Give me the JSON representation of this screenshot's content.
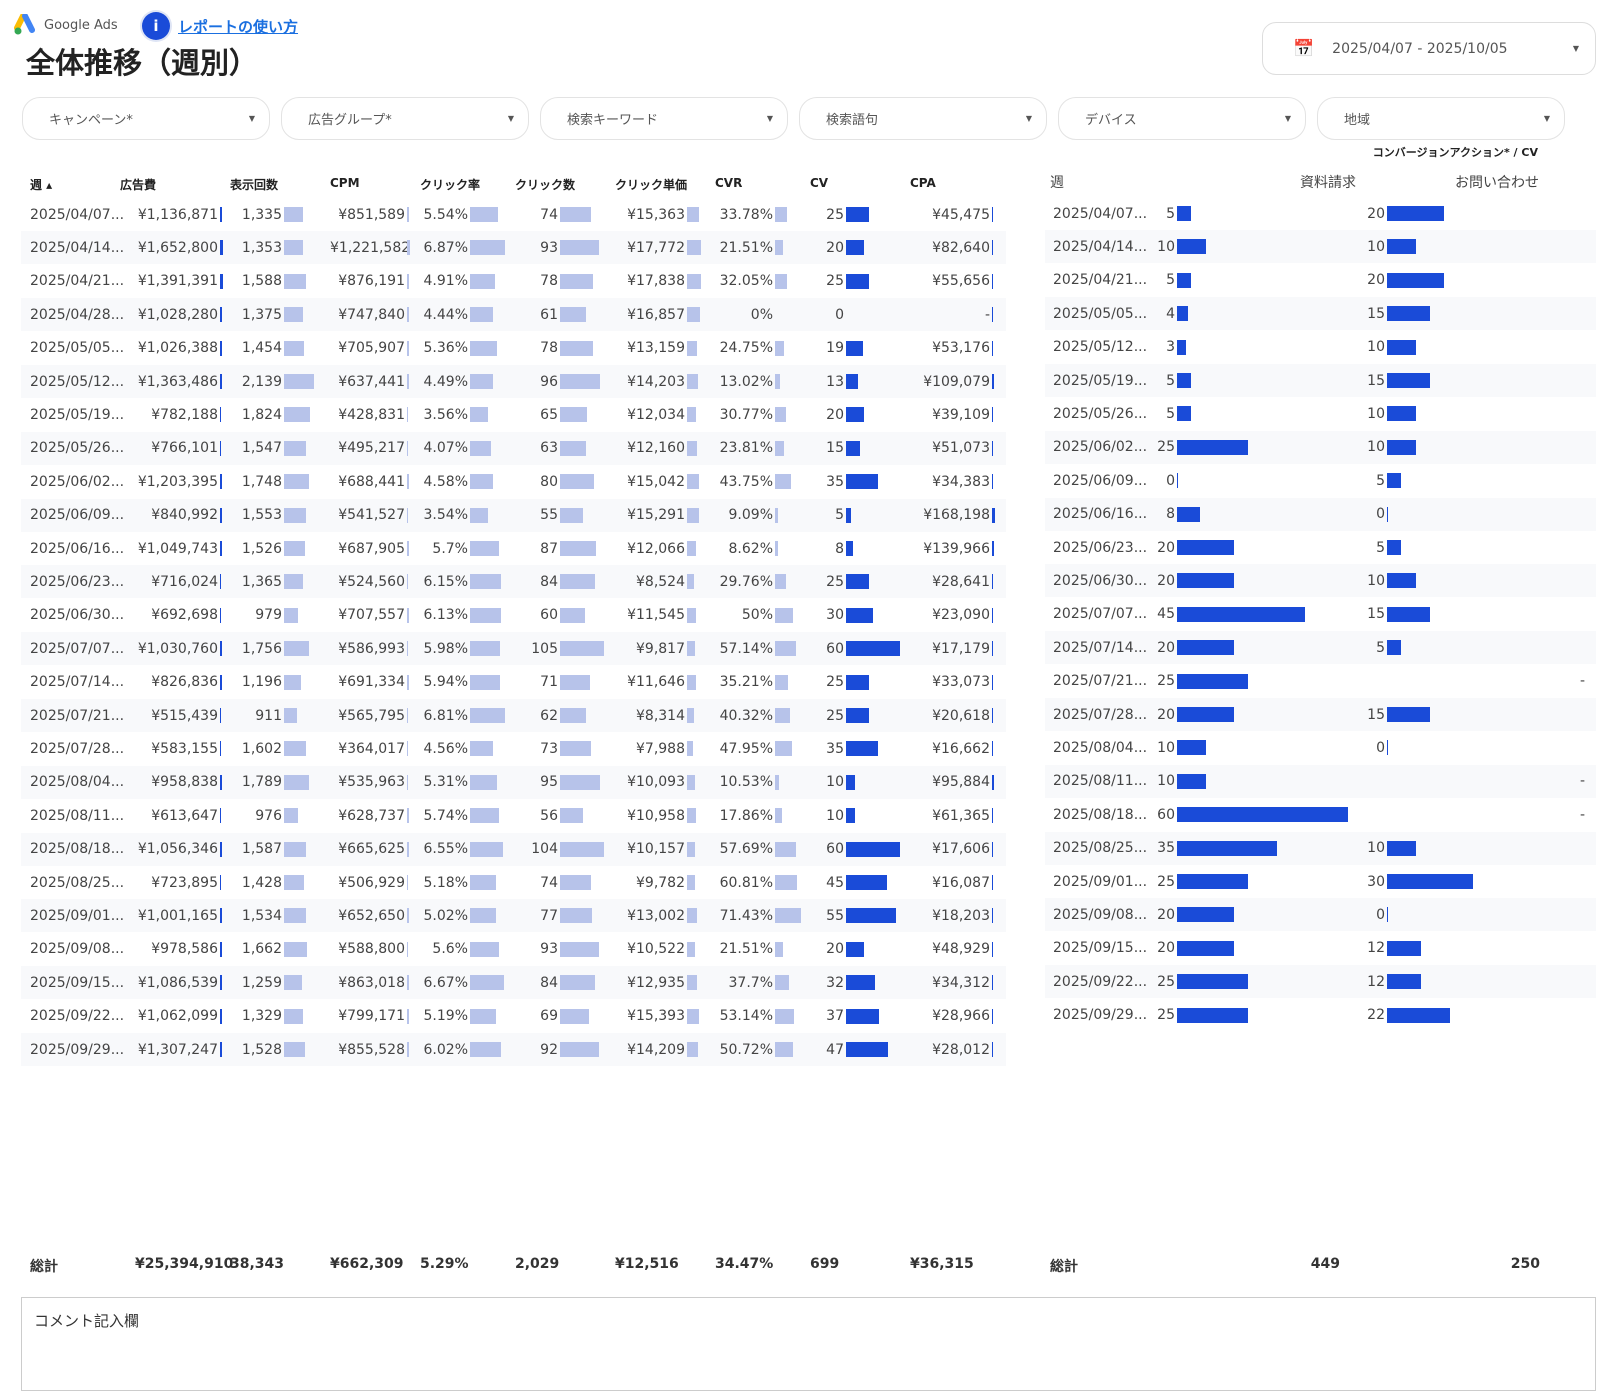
{
  "header": {
    "logo_text": "Google Ads",
    "help_link": "レポートの使い方",
    "title": "全体推移（週別）",
    "date_range": "2025/04/07 - 2025/10/05"
  },
  "filters": [
    "キャンペーン*",
    "広告グループ*",
    "検索キーワード",
    "検索語句",
    "デバイス",
    "地域"
  ],
  "colors": {
    "light_bar": "#b7c3ea",
    "dark_bar": "#1a4bd8"
  },
  "main_table": {
    "headers": [
      "週 ▴",
      "広告費",
      "表示回数",
      "CPM",
      "クリック率",
      "クリック数",
      "クリック単価",
      "CVR",
      "CV",
      "CPA"
    ],
    "rows": [
      [
        "2025/04/07...",
        "¥1,136,871",
        "1,335",
        "¥851,589",
        "5.54%",
        "74",
        "¥15,363",
        "33.78%",
        "25",
        "¥45,475"
      ],
      [
        "2025/04/14...",
        "¥1,652,800",
        "1,353",
        "¥1,221,582",
        "6.87%",
        "93",
        "¥17,772",
        "21.51%",
        "20",
        "¥82,640"
      ],
      [
        "2025/04/21...",
        "¥1,391,391",
        "1,588",
        "¥876,191",
        "4.91%",
        "78",
        "¥17,838",
        "32.05%",
        "25",
        "¥55,656"
      ],
      [
        "2025/04/28...",
        "¥1,028,280",
        "1,375",
        "¥747,840",
        "4.44%",
        "61",
        "¥16,857",
        "0%",
        "0",
        "-"
      ],
      [
        "2025/05/05...",
        "¥1,026,388",
        "1,454",
        "¥705,907",
        "5.36%",
        "78",
        "¥13,159",
        "24.75%",
        "19",
        "¥53,176"
      ],
      [
        "2025/05/12...",
        "¥1,363,486",
        "2,139",
        "¥637,441",
        "4.49%",
        "96",
        "¥14,203",
        "13.02%",
        "13",
        "¥109,079"
      ],
      [
        "2025/05/19...",
        "¥782,188",
        "1,824",
        "¥428,831",
        "3.56%",
        "65",
        "¥12,034",
        "30.77%",
        "20",
        "¥39,109"
      ],
      [
        "2025/05/26...",
        "¥766,101",
        "1,547",
        "¥495,217",
        "4.07%",
        "63",
        "¥12,160",
        "23.81%",
        "15",
        "¥51,073"
      ],
      [
        "2025/06/02...",
        "¥1,203,395",
        "1,748",
        "¥688,441",
        "4.58%",
        "80",
        "¥15,042",
        "43.75%",
        "35",
        "¥34,383"
      ],
      [
        "2025/06/09...",
        "¥840,992",
        "1,553",
        "¥541,527",
        "3.54%",
        "55",
        "¥15,291",
        "9.09%",
        "5",
        "¥168,198"
      ],
      [
        "2025/06/16...",
        "¥1,049,743",
        "1,526",
        "¥687,905",
        "5.7%",
        "87",
        "¥12,066",
        "8.62%",
        "8",
        "¥139,966"
      ],
      [
        "2025/06/23...",
        "¥716,024",
        "1,365",
        "¥524,560",
        "6.15%",
        "84",
        "¥8,524",
        "29.76%",
        "25",
        "¥28,641"
      ],
      [
        "2025/06/30...",
        "¥692,698",
        "979",
        "¥707,557",
        "6.13%",
        "60",
        "¥11,545",
        "50%",
        "30",
        "¥23,090"
      ],
      [
        "2025/07/07...",
        "¥1,030,760",
        "1,756",
        "¥586,993",
        "5.98%",
        "105",
        "¥9,817",
        "57.14%",
        "60",
        "¥17,179"
      ],
      [
        "2025/07/14...",
        "¥826,836",
        "1,196",
        "¥691,334",
        "5.94%",
        "71",
        "¥11,646",
        "35.21%",
        "25",
        "¥33,073"
      ],
      [
        "2025/07/21...",
        "¥515,439",
        "911",
        "¥565,795",
        "6.81%",
        "62",
        "¥8,314",
        "40.32%",
        "25",
        "¥20,618"
      ],
      [
        "2025/07/28...",
        "¥583,155",
        "1,602",
        "¥364,017",
        "4.56%",
        "73",
        "¥7,988",
        "47.95%",
        "35",
        "¥16,662"
      ],
      [
        "2025/08/04...",
        "¥958,838",
        "1,789",
        "¥535,963",
        "5.31%",
        "95",
        "¥10,093",
        "10.53%",
        "10",
        "¥95,884"
      ],
      [
        "2025/08/11...",
        "¥613,647",
        "976",
        "¥628,737",
        "5.74%",
        "56",
        "¥10,958",
        "17.86%",
        "10",
        "¥61,365"
      ],
      [
        "2025/08/18...",
        "¥1,056,346",
        "1,587",
        "¥665,625",
        "6.55%",
        "104",
        "¥10,157",
        "57.69%",
        "60",
        "¥17,606"
      ],
      [
        "2025/08/25...",
        "¥723,895",
        "1,428",
        "¥506,929",
        "5.18%",
        "74",
        "¥9,782",
        "60.81%",
        "45",
        "¥16,087"
      ],
      [
        "2025/09/01...",
        "¥1,001,165",
        "1,534",
        "¥652,650",
        "5.02%",
        "77",
        "¥13,002",
        "71.43%",
        "55",
        "¥18,203"
      ],
      [
        "2025/09/08...",
        "¥978,586",
        "1,662",
        "¥588,800",
        "5.6%",
        "93",
        "¥10,522",
        "21.51%",
        "20",
        "¥48,929"
      ],
      [
        "2025/09/15...",
        "¥1,086,539",
        "1,259",
        "¥863,018",
        "6.67%",
        "84",
        "¥12,935",
        "37.7%",
        "32",
        "¥34,312"
      ],
      [
        "2025/09/22...",
        "¥1,062,099",
        "1,329",
        "¥799,171",
        "5.19%",
        "69",
        "¥15,393",
        "53.14%",
        "37",
        "¥28,966"
      ],
      [
        "2025/09/29...",
        "¥1,307,247",
        "1,528",
        "¥855,528",
        "6.02%",
        "92",
        "¥14,209",
        "50.72%",
        "47",
        "¥28,012"
      ]
    ],
    "totals": [
      "総計",
      "¥25,394,910",
      "38,343",
      "¥662,309",
      "5.29%",
      "2,029",
      "¥12,516",
      "34.47%",
      "699",
      "¥36,315"
    ]
  },
  "cv_table": {
    "caption": "コンバージョンアクション* / CV",
    "headers": [
      "週",
      "資料請求",
      "お問い合わせ"
    ],
    "rows": [
      [
        "2025/04/07...",
        "5",
        "20"
      ],
      [
        "2025/04/14...",
        "10",
        "10"
      ],
      [
        "2025/04/21...",
        "5",
        "20"
      ],
      [
        "2025/05/05...",
        "4",
        "15"
      ],
      [
        "2025/05/12...",
        "3",
        "10"
      ],
      [
        "2025/05/19...",
        "5",
        "15"
      ],
      [
        "2025/05/26...",
        "5",
        "10"
      ],
      [
        "2025/06/02...",
        "25",
        "10"
      ],
      [
        "2025/06/09...",
        "0",
        "5"
      ],
      [
        "2025/06/16...",
        "8",
        "0"
      ],
      [
        "2025/06/23...",
        "20",
        "5"
      ],
      [
        "2025/06/30...",
        "20",
        "10"
      ],
      [
        "2025/07/07...",
        "45",
        "15"
      ],
      [
        "2025/07/14...",
        "20",
        "5"
      ],
      [
        "2025/07/21...",
        "25",
        "-"
      ],
      [
        "2025/07/28...",
        "20",
        "15"
      ],
      [
        "2025/08/04...",
        "10",
        "0"
      ],
      [
        "2025/08/11...",
        "10",
        "-"
      ],
      [
        "2025/08/18...",
        "60",
        "-"
      ],
      [
        "2025/08/25...",
        "35",
        "10"
      ],
      [
        "2025/09/01...",
        "25",
        "30"
      ],
      [
        "2025/09/08...",
        "20",
        "0"
      ],
      [
        "2025/09/15...",
        "20",
        "12"
      ],
      [
        "2025/09/22...",
        "25",
        "12"
      ],
      [
        "2025/09/29...",
        "25",
        "22"
      ]
    ],
    "totals": [
      "総計",
      "449",
      "250"
    ]
  },
  "comment": {
    "label": "コメント記入欄"
  }
}
